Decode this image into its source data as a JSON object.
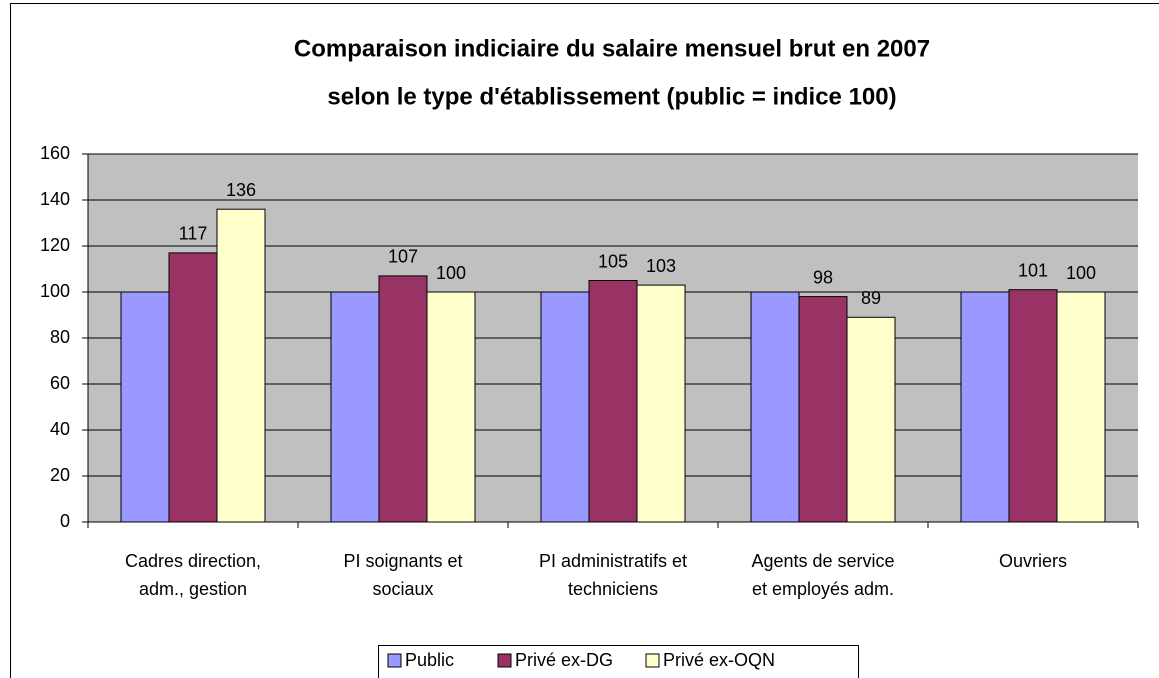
{
  "chart_data": {
    "type": "bar",
    "title": [
      "Comparaison indiciaire du salaire mensuel brut en 2007",
      "selon le type d'établissement (public = indice 100)"
    ],
    "categories": [
      "Cadres direction,\nadm., gestion",
      "PI soignants et\nsociaux",
      "PI administratifs et\ntechniciens",
      "Agents de service\net employés adm.",
      "Ouvriers"
    ],
    "series": [
      {
        "name": "Public",
        "color": "#9999ff",
        "values": [
          100,
          100,
          100,
          100,
          100
        ],
        "labels": false
      },
      {
        "name": "Privé ex-DG",
        "color": "#993366",
        "values": [
          117,
          107,
          105,
          98,
          101
        ],
        "labels": true
      },
      {
        "name": "Privé ex-OQN",
        "color": "#ffffcc",
        "values": [
          136,
          100,
          103,
          89,
          100
        ],
        "labels": true
      }
    ],
    "ylim": [
      0,
      160
    ],
    "yticks": [
      0,
      20,
      40,
      60,
      80,
      100,
      120,
      140,
      160
    ],
    "grid": true,
    "legend": "bottom"
  }
}
